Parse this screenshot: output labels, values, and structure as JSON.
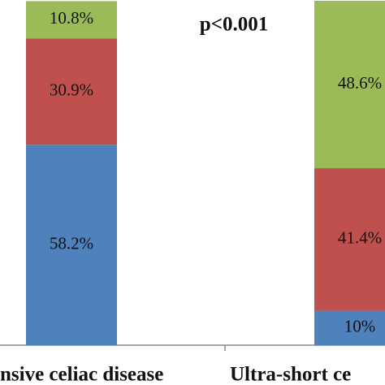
{
  "chart_data": {
    "type": "stacked-bar",
    "categories": [
      "nsive celiac disease",
      "Ultra-short ce"
    ],
    "annotation": "p<0.001",
    "ylim": [
      0,
      100
    ],
    "series": [
      {
        "color": "#4f81bd",
        "values": [
          58.2,
          10
        ],
        "value_labels": [
          "58.2%",
          "10%"
        ]
      },
      {
        "color": "#c0504d",
        "values": [
          30.9,
          41.4
        ],
        "value_labels": [
          "30.9%",
          "41.4%"
        ]
      },
      {
        "color": "#9bbb59",
        "values": [
          10.8,
          48.6
        ],
        "value_labels": [
          "10.8%",
          "48.6%"
        ]
      }
    ]
  }
}
